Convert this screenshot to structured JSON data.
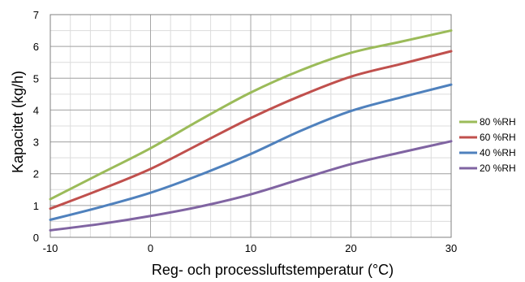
{
  "chart_data": {
    "type": "line",
    "xlabel": "Reg- och processluftstemperatur (°C)",
    "ylabel": "Kapacitet (kg/h)",
    "xlim": [
      -10,
      30
    ],
    "ylim": [
      0,
      7
    ],
    "x_ticks": [
      -10,
      0,
      10,
      20,
      30
    ],
    "y_ticks": [
      0,
      1,
      2,
      3,
      4,
      5,
      6,
      7
    ],
    "grid": true,
    "legend_position": "right",
    "x": [
      -10,
      -5,
      0,
      5,
      10,
      15,
      20,
      25,
      30
    ],
    "series": [
      {
        "name": "80 %RH",
        "color": "#9bbb59",
        "values": [
          1.2,
          2.0,
          2.8,
          3.7,
          4.55,
          5.25,
          5.8,
          6.15,
          6.5
        ]
      },
      {
        "name": "60 %RH",
        "color": "#c0504d",
        "values": [
          0.9,
          1.5,
          2.15,
          2.95,
          3.75,
          4.45,
          5.05,
          5.45,
          5.85
        ]
      },
      {
        "name": "40 %RH",
        "color": "#4f81bd",
        "values": [
          0.55,
          0.95,
          1.4,
          1.97,
          2.62,
          3.35,
          3.97,
          4.4,
          4.8
        ]
      },
      {
        "name": "20 %RH",
        "color": "#8064a2",
        "values": [
          0.22,
          0.42,
          0.67,
          0.97,
          1.35,
          1.83,
          2.3,
          2.67,
          3.02
        ]
      }
    ]
  }
}
